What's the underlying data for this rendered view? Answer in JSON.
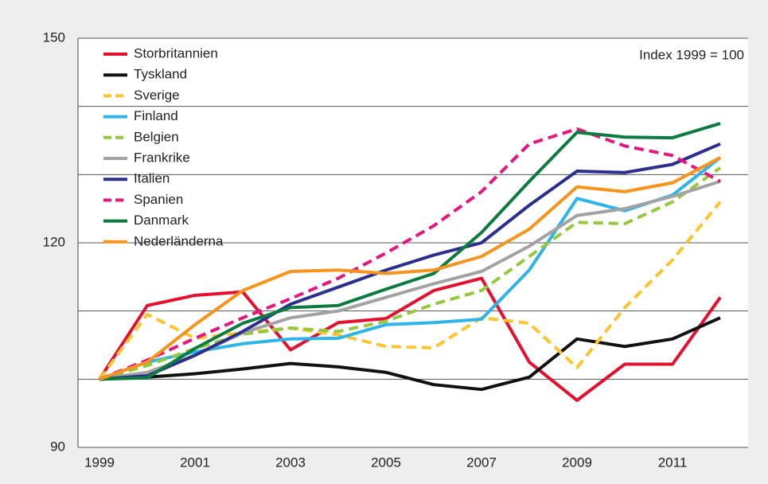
{
  "chart_data": {
    "type": "line",
    "annotation": "Index 1999 = 100",
    "categories": [
      "1999",
      null,
      "2001",
      null,
      "2003",
      null,
      "2005",
      null,
      "2007",
      null,
      "2009",
      null,
      "2011",
      null
    ],
    "ylim": [
      90,
      150
    ],
    "yticks": [
      90,
      120,
      150
    ],
    "minor_yticks": [
      100,
      110,
      130,
      140
    ],
    "grid": true,
    "legend": "top-left",
    "series": [
      {
        "name": "Storbritannien",
        "color": "#e3102f",
        "dashed": false,
        "values": [
          100,
          110.8,
          112.3,
          112.8,
          104.3,
          108.3,
          108.9,
          113,
          114.8,
          102.5,
          96.9,
          102.2,
          102.2,
          112
        ]
      },
      {
        "name": "Tyskland",
        "color": "#111111",
        "dashed": false,
        "values": [
          100,
          100.3,
          100.8,
          101.5,
          102.3,
          101.8,
          101,
          99.2,
          98.5,
          100.3,
          105.9,
          104.8,
          105.9,
          109
        ]
      },
      {
        "name": "Sverige",
        "color": "#fbc530",
        "dashed": true,
        "values": [
          100,
          109.5,
          106,
          106.8,
          107.5,
          106.5,
          104.8,
          104.6,
          109,
          108.2,
          101.7,
          110.5,
          117.5,
          126
        ]
      },
      {
        "name": "Finland",
        "color": "#2fb4e9",
        "dashed": false,
        "values": [
          100,
          102.5,
          104,
          105.2,
          105.9,
          106,
          108,
          108.3,
          108.8,
          116,
          126.5,
          124.7,
          127,
          132.5
        ]
      },
      {
        "name": "Belgien",
        "color": "#95c83f",
        "dashed": true,
        "values": [
          100,
          102,
          104.5,
          106.6,
          107.5,
          107,
          108.5,
          111,
          113,
          118,
          123,
          122.8,
          126,
          131
        ]
      },
      {
        "name": "Frankrike",
        "color": "#a2a2a2",
        "dashed": false,
        "values": [
          100,
          101,
          103.5,
          106.8,
          109,
          110,
          112,
          114,
          115.8,
          119.5,
          124,
          125,
          126.8,
          129
        ]
      },
      {
        "name": "Italien",
        "color": "#2c2f8e",
        "dashed": false,
        "values": [
          100,
          100.5,
          103.5,
          107,
          111,
          113.5,
          116,
          118.2,
          120,
          125.5,
          130.5,
          130.3,
          131.5,
          134.5
        ]
      },
      {
        "name": "Spanien",
        "color": "#e5177e",
        "dashed": true,
        "values": [
          100,
          102.8,
          106,
          109,
          111.8,
          114.8,
          118.5,
          122.5,
          127.5,
          134.5,
          136.7,
          134.2,
          132.8,
          129
        ]
      },
      {
        "name": "Danmark",
        "color": "#0b7b3f",
        "dashed": false,
        "values": [
          100,
          100.2,
          104.5,
          108.2,
          110.5,
          110.8,
          113.2,
          115.5,
          121.5,
          129,
          136.2,
          135.5,
          135.4,
          137.5
        ]
      },
      {
        "name": "Nederländerna",
        "color": "#f7941e",
        "dashed": false,
        "values": [
          100,
          102.5,
          108,
          113,
          115.8,
          116,
          115.5,
          116,
          118,
          122,
          128.2,
          127.5,
          128.8,
          132.5
        ]
      }
    ]
  }
}
